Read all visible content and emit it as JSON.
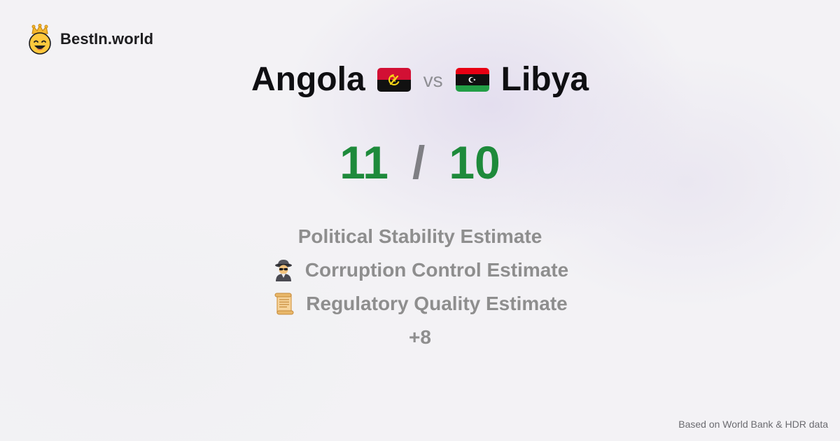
{
  "header": {
    "brand": "BestIn.world",
    "logo_icon": "crown-smiley-icon"
  },
  "comparison": {
    "country_a": {
      "name": "Angola",
      "flag_icon": "angola-flag-icon",
      "score": "11"
    },
    "vs_label": "vs",
    "country_b": {
      "name": "Libya",
      "flag_icon": "libya-flag-icon",
      "score": "10"
    },
    "separator": "/"
  },
  "criteria": [
    {
      "label": "Political Stability Estimate",
      "icon": ""
    },
    {
      "label": "Corruption Control Estimate",
      "icon": "detective-icon"
    },
    {
      "label": "Regulatory Quality Estimate",
      "icon": "scroll-icon"
    }
  ],
  "more_label": "+8",
  "footer": {
    "source_note": "Based on World Bank & HDR data"
  },
  "colors": {
    "score": "#1e8a3b",
    "muted_text": "#8e8e8e",
    "title_text": "#0f0f12",
    "background": "#f3f2f5"
  }
}
